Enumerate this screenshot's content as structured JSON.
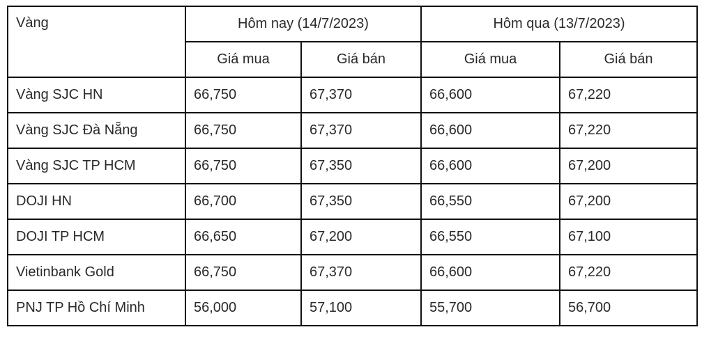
{
  "header": {
    "item_label": "Vàng",
    "today": "Hôm nay (14/7/2023)",
    "yesterday": "Hôm qua (13/7/2023)",
    "buy": "Giá mua",
    "sell": "Giá bán"
  },
  "rows": [
    {
      "name": "Vàng SJC HN",
      "today_buy": "66,750",
      "today_sell": "67,370",
      "yest_buy": "66,600",
      "yest_sell": "67,220"
    },
    {
      "name": "Vàng SJC Đà Nẵng",
      "today_buy": "66,750",
      "today_sell": "67,370",
      "yest_buy": "66,600",
      "yest_sell": "67,220"
    },
    {
      "name": "Vàng SJC TP HCM",
      "today_buy": "66,750",
      "today_sell": "67,350",
      "yest_buy": "66,600",
      "yest_sell": "67,200"
    },
    {
      "name": "DOJI HN",
      "today_buy": "66,700",
      "today_sell": "67,350",
      "yest_buy": "66,550",
      "yest_sell": "67,200"
    },
    {
      "name": "DOJI TP HCM",
      "today_buy": "66,650",
      "today_sell": "67,200",
      "yest_buy": "66,550",
      "yest_sell": "67,100"
    },
    {
      "name": "Vietinbank Gold",
      "today_buy": "66,750",
      "today_sell": "67,370",
      "yest_buy": "66,600",
      "yest_sell": "67,220"
    },
    {
      "name": "PNJ TP Hồ Chí Minh",
      "today_buy": "56,000",
      "today_sell": "57,100",
      "yest_buy": "55,700",
      "yest_sell": "56,700"
    }
  ]
}
